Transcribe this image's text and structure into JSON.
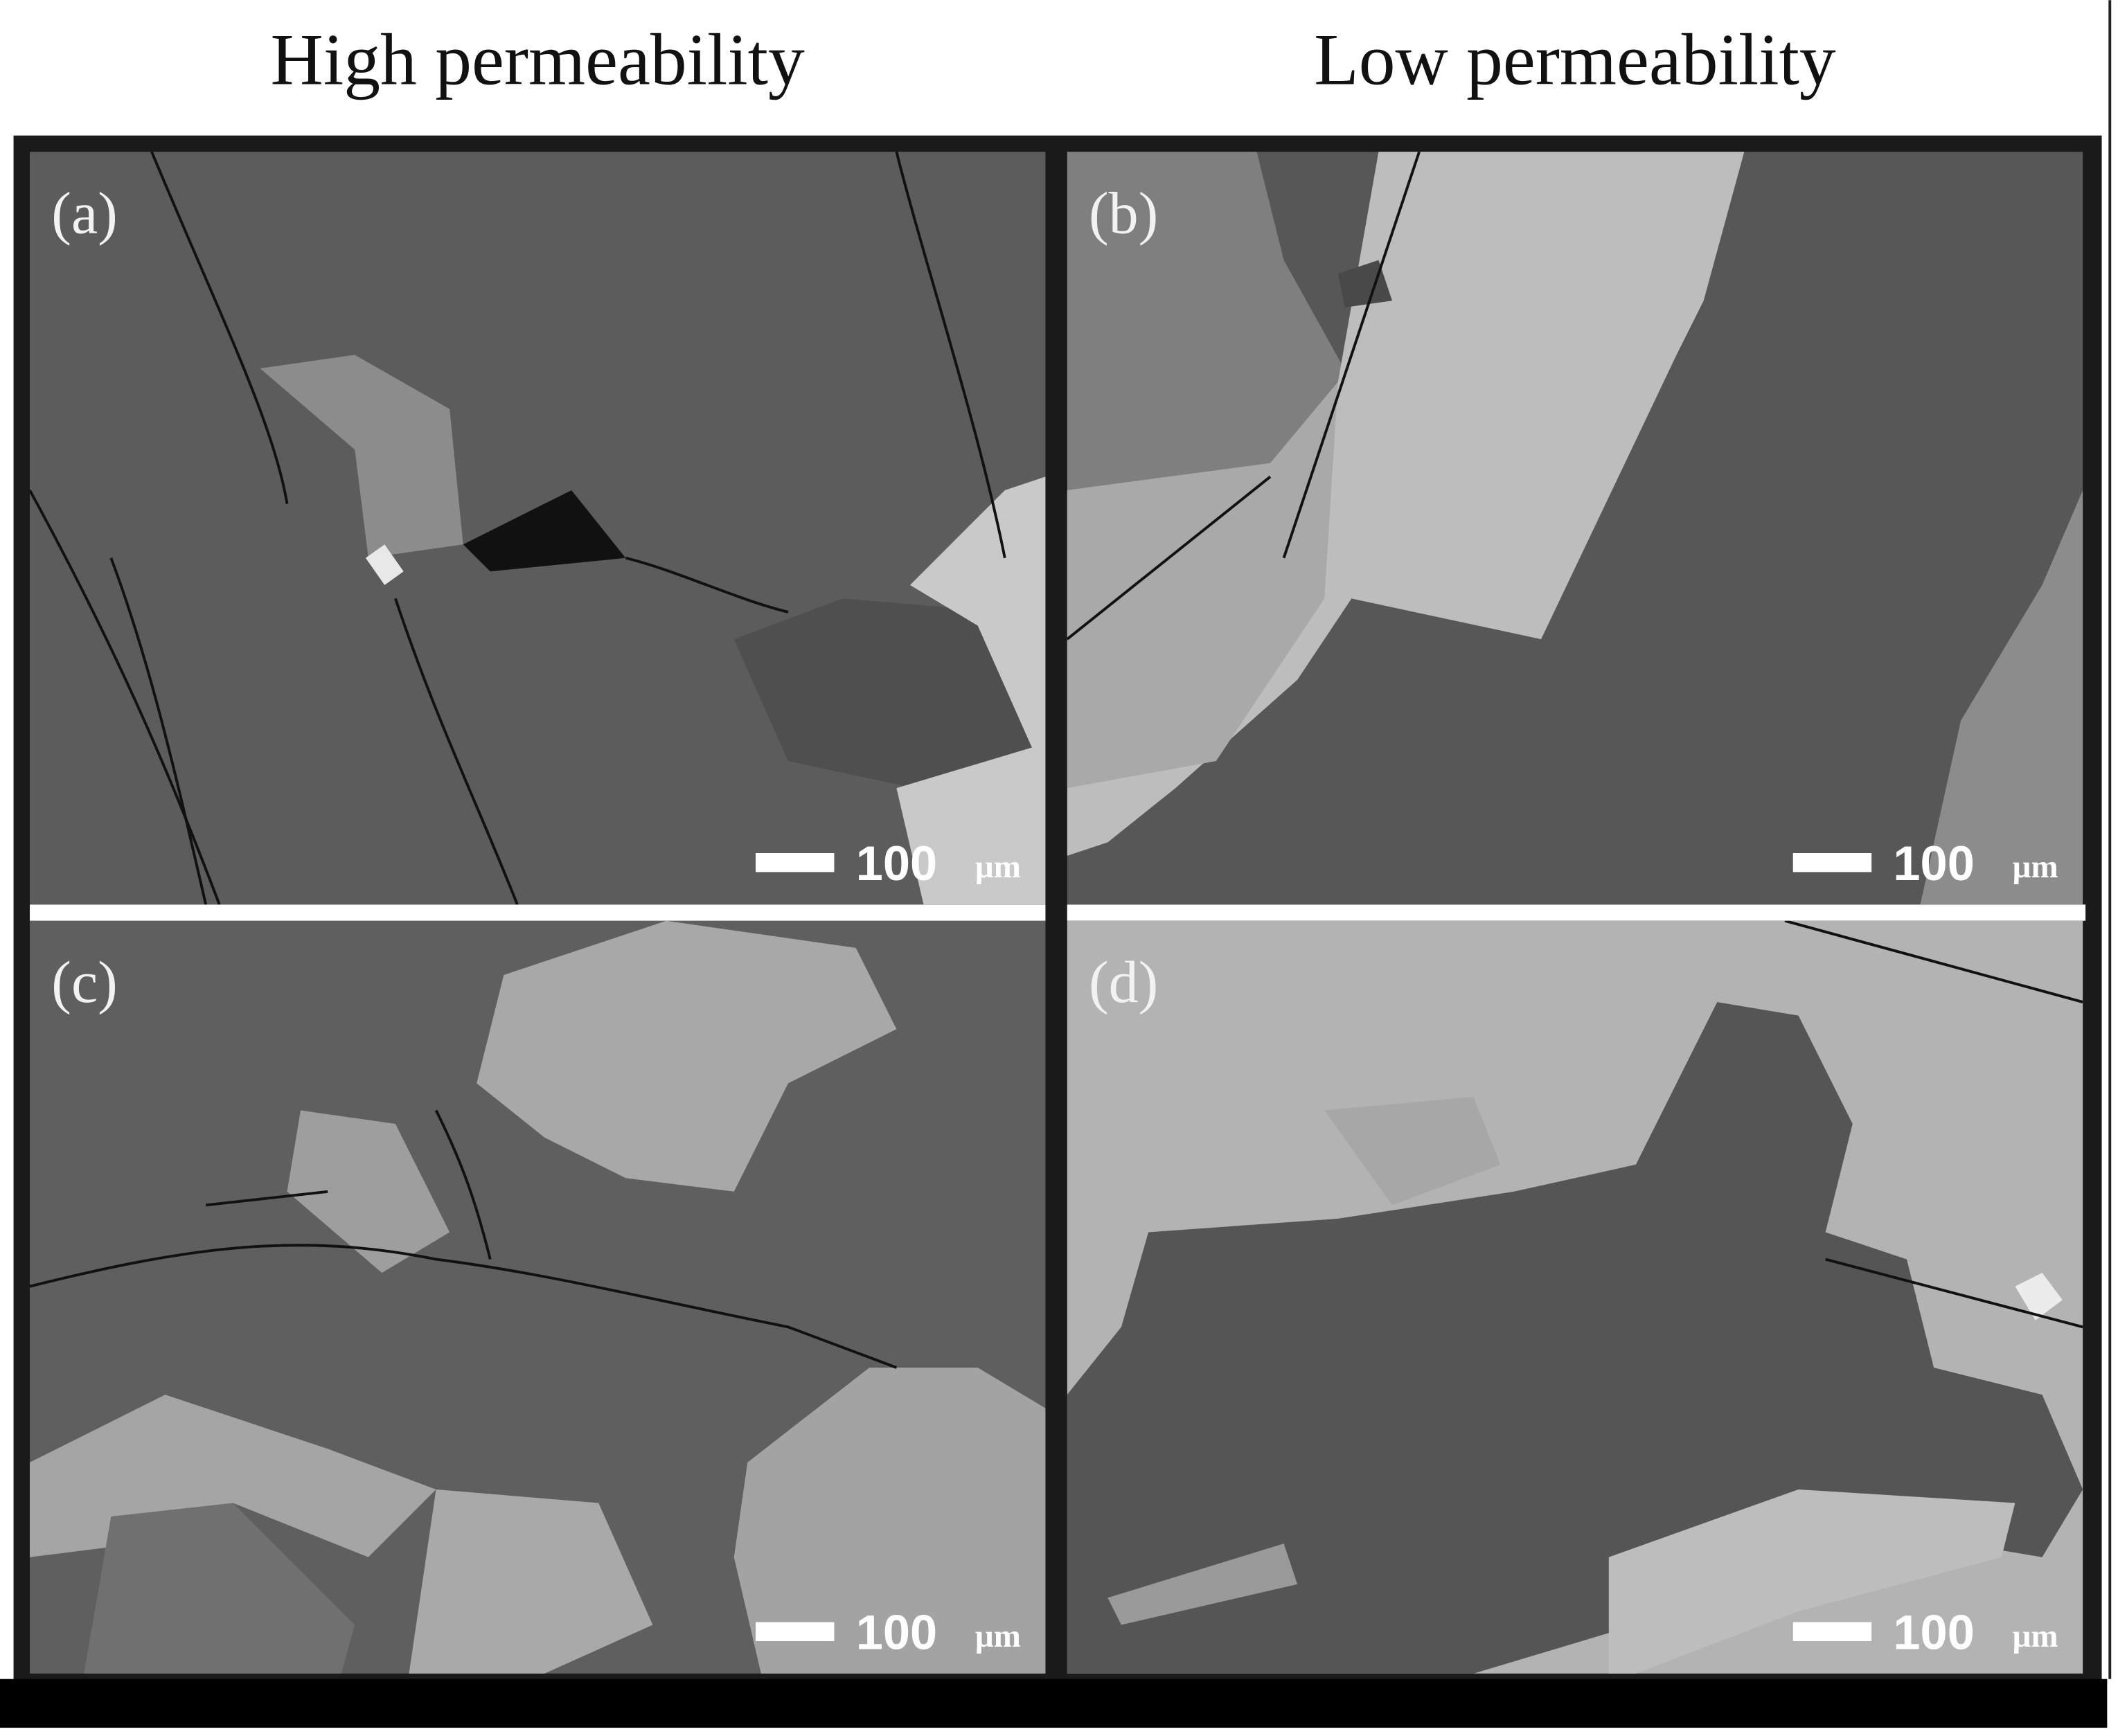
{
  "columns": [
    "High permeability",
    "Low permeability"
  ],
  "panels": [
    {
      "label": "(a)",
      "scale_value": "100",
      "scale_unit": "µm"
    },
    {
      "label": "(b)",
      "scale_value": "100",
      "scale_unit": "µm"
    },
    {
      "label": "(c)",
      "scale_value": "100",
      "scale_unit": "µm"
    },
    {
      "label": "(d)",
      "scale_value": "100",
      "scale_unit": "µm"
    }
  ]
}
